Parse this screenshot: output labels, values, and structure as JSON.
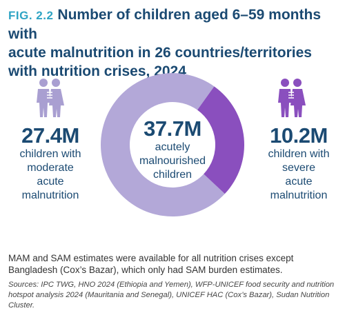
{
  "figure": {
    "label": "FIG. 2.2",
    "title_lines": [
      "Number of children aged 6–59 months with",
      "acute malnutrition in 26 countries/territories",
      "with nutrition crises, 2024"
    ]
  },
  "chart_data": {
    "type": "pie",
    "categories": [
      "children with moderate acute malnutrition",
      "children with severe acute malnutrition"
    ],
    "values": [
      27.4,
      10.2
    ],
    "unit": "M",
    "colors": [
      "#b3a8d8",
      "#8a4fbe"
    ],
    "donut": true,
    "total": {
      "value": "37.7M",
      "lines": [
        "acutely",
        "malnourished",
        "children"
      ]
    }
  },
  "left_stat": {
    "value": "27.4M",
    "lines": [
      "children with",
      "moderate",
      "acute",
      "malnutrition"
    ],
    "icon": "children-icon",
    "color": "#a99fd1"
  },
  "right_stat": {
    "value": "10.2M",
    "lines": [
      "children with",
      "severe",
      "acute",
      "malnutrition"
    ],
    "icon": "children-icon",
    "color": "#8a4fbe"
  },
  "note": "MAM and SAM estimates were available for all nutrition crises except Bangladesh (Cox’s Bazar), which only had SAM burden estimates.",
  "sources": "Sources: IPC TWG, HNO 2024 (Ethiopia and Yemen), WFP-UNICEF food security and nutrition hotspot analysis 2024 (Mauritania and Senegal), UNICEF HAC (Cox’s Bazar), Sudan Nutrition Cluster."
}
